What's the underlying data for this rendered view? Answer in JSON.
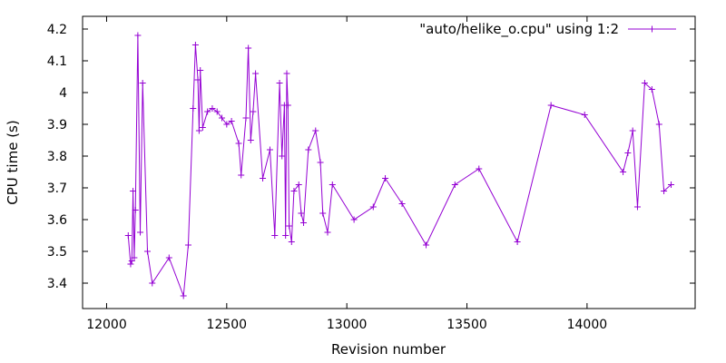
{
  "chart_data": {
    "type": "line",
    "title": "",
    "xlabel": "Revision number",
    "ylabel": "CPU time (s)",
    "xlim": [
      11900,
      14450
    ],
    "ylim": [
      3.32,
      4.24
    ],
    "xticks": [
      12000,
      12500,
      13000,
      13500,
      14000
    ],
    "xtick_labels": [
      "12000",
      "12500",
      "13000",
      "13500",
      "14000"
    ],
    "yticks": [
      3.4,
      3.5,
      3.6,
      3.7,
      3.8,
      3.9,
      4.0,
      4.1,
      4.2
    ],
    "ytick_labels": [
      "3.4",
      "3.5",
      "3.6",
      "3.7",
      "3.8",
      "3.9",
      "4",
      "4.1",
      "4.2"
    ],
    "grid": false,
    "legend_position": "top-right",
    "color": "#9400d3",
    "marker": "plus",
    "series": [
      {
        "name": "\"auto/helike_o.cpu\" using 1:2",
        "x": [
          12090,
          12100,
          12105,
          12110,
          12115,
          12120,
          12130,
          12140,
          12150,
          12170,
          12190,
          12260,
          12320,
          12340,
          12360,
          12370,
          12380,
          12385,
          12390,
          12400,
          12420,
          12440,
          12460,
          12480,
          12500,
          12520,
          12550,
          12560,
          12580,
          12590,
          12600,
          12610,
          12620,
          12650,
          12680,
          12700,
          12720,
          12730,
          12740,
          12745,
          12750,
          12755,
          12760,
          12770,
          12780,
          12800,
          12810,
          12820,
          12840,
          12870,
          12890,
          12900,
          12920,
          12940,
          13030,
          13110,
          13160,
          13230,
          13330,
          13450,
          13550,
          13710,
          13850,
          13990,
          14150,
          14170,
          14190,
          14210,
          14240,
          14270,
          14300,
          14320,
          14350
        ],
        "y": [
          3.55,
          3.46,
          3.47,
          3.69,
          3.48,
          3.63,
          4.18,
          3.56,
          4.03,
          3.5,
          3.4,
          3.48,
          3.36,
          3.52,
          3.95,
          4.15,
          4.04,
          3.88,
          4.07,
          3.89,
          3.94,
          3.95,
          3.94,
          3.92,
          3.9,
          3.91,
          3.84,
          3.74,
          3.92,
          4.14,
          3.85,
          3.94,
          4.06,
          3.73,
          3.82,
          3.55,
          4.03,
          3.8,
          3.96,
          3.55,
          4.06,
          3.96,
          3.58,
          3.53,
          3.69,
          3.71,
          3.62,
          3.59,
          3.82,
          3.88,
          3.78,
          3.62,
          3.56,
          3.71,
          3.6,
          3.64,
          3.73,
          3.65,
          3.52,
          3.71,
          3.76,
          3.53,
          3.96,
          3.93,
          3.75,
          3.81,
          3.88,
          3.64,
          4.03,
          4.01,
          3.9,
          3.69,
          3.71
        ]
      }
    ]
  }
}
